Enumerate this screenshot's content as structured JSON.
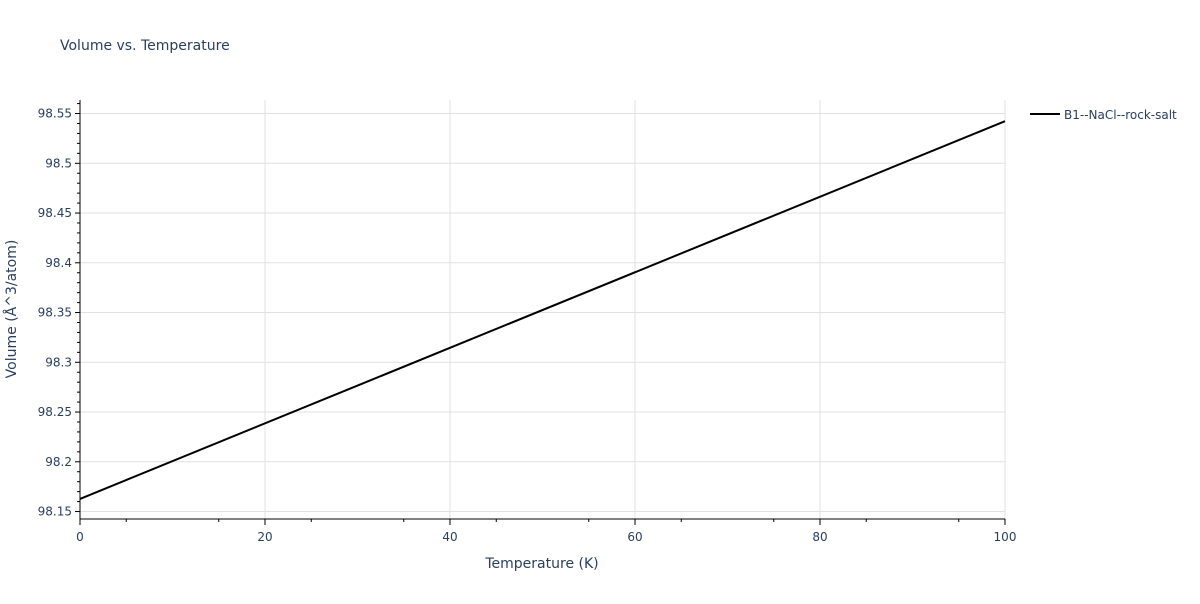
{
  "chart_data": {
    "type": "line",
    "title": "Volume vs. Temperature",
    "xlabel": "Temperature (K)",
    "ylabel": "Volume (Å^3/atom)",
    "xlim": [
      0,
      100
    ],
    "ylim": [
      98.1425,
      98.5636
    ],
    "xticks": [
      0,
      20,
      40,
      60,
      80,
      100
    ],
    "xtick_labels": [
      "0",
      "20",
      "40",
      "60",
      "80",
      "100"
    ],
    "yticks": [
      98.15,
      98.2,
      98.25,
      98.3,
      98.35,
      98.4,
      98.45,
      98.5,
      98.55
    ],
    "ytick_labels": [
      "98.15",
      "98.2",
      "98.25",
      "98.3",
      "98.35",
      "98.4",
      "98.45",
      "98.5",
      "98.55"
    ],
    "grid": true,
    "legend_position": "top-right-outside",
    "series": [
      {
        "name": "B1--NaCl--rock-salt",
        "color": "#000000",
        "x": [
          0,
          100
        ],
        "y": [
          98.1627,
          98.5423
        ]
      }
    ]
  }
}
